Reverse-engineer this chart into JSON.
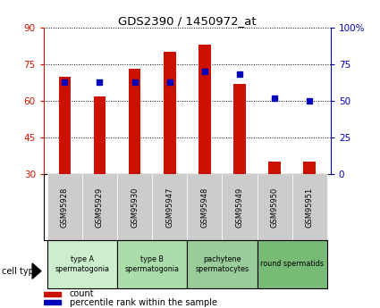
{
  "title": "GDS2390 / 1450972_at",
  "samples": [
    "GSM95928",
    "GSM95929",
    "GSM95930",
    "GSM95947",
    "GSM95948",
    "GSM95949",
    "GSM95950",
    "GSM95951"
  ],
  "count_values": [
    70.0,
    62.0,
    73.0,
    80.0,
    83.0,
    67.0,
    35.0,
    35.0
  ],
  "percentile_values": [
    63,
    63,
    63,
    63,
    70,
    68,
    52,
    50
  ],
  "ylim_left": [
    30,
    90
  ],
  "ylim_right": [
    0,
    100
  ],
  "yticks_left": [
    30,
    45,
    60,
    75,
    90
  ],
  "yticks_right": [
    0,
    25,
    50,
    75,
    100
  ],
  "ytick_labels_right": [
    "0",
    "25",
    "50",
    "75",
    "100%"
  ],
  "ytick_labels_left": [
    "30",
    "45",
    "60",
    "75",
    "90"
  ],
  "bar_color": "#cc1100",
  "dot_color": "#0000bb",
  "left_tick_color": "#cc1100",
  "right_tick_color": "#0000bb",
  "cell_types": [
    {
      "label": "type A\nspermatogonia",
      "start": 0,
      "end": 2,
      "color": "#cceecc"
    },
    {
      "label": "type B\nspermatogonia",
      "start": 2,
      "end": 4,
      "color": "#aaddaa"
    },
    {
      "label": "pachytene\nspermatocytes",
      "start": 4,
      "end": 6,
      "color": "#99cc99"
    },
    {
      "label": "round spermatids",
      "start": 6,
      "end": 8,
      "color": "#77bb77"
    }
  ],
  "legend_count_label": "count",
  "legend_pct_label": "percentile rank within the sample",
  "bar_bottom": 30,
  "bar_width": 0.35,
  "sample_box_color": "#cccccc",
  "grid_color": "#000000",
  "bg_color": "#ffffff"
}
